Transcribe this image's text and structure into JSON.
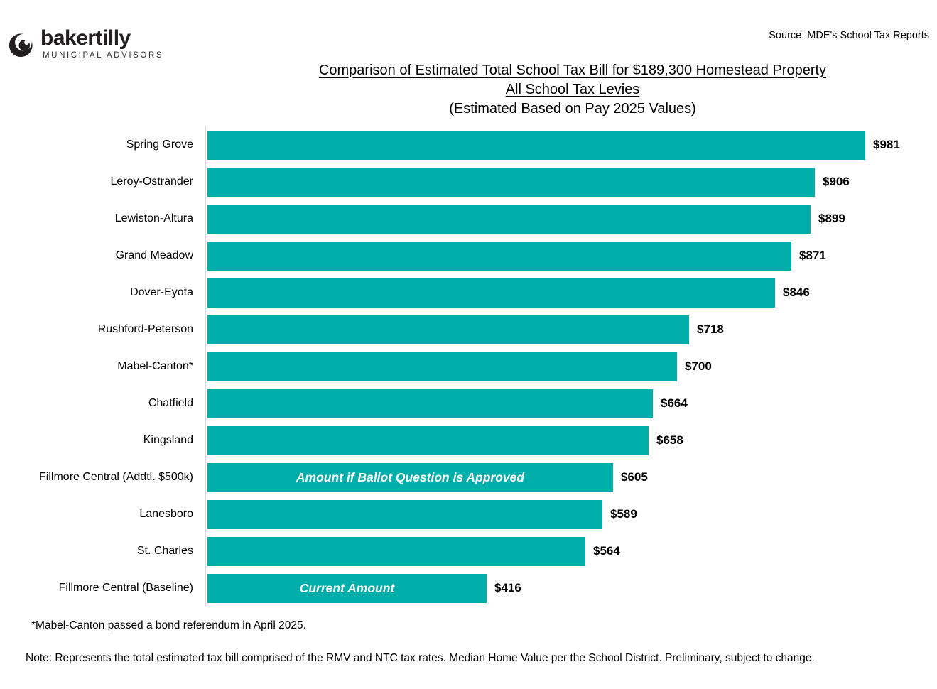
{
  "header": {
    "logo_brand": "bakertilly",
    "logo_subbrand": "MUNICIPAL ADVISORS",
    "source": "Source: MDE's School Tax Reports"
  },
  "chart_data": {
    "type": "bar",
    "orientation": "horizontal",
    "title_line1": "Comparison of Estimated Total School Tax Bill for $189,300 Homestead Property",
    "title_line2": "All School Tax Levies",
    "title_line3": "(Estimated Based on Pay 2025 Values)",
    "bar_color": "#00afa9",
    "value_prefix": "$",
    "xlim": [
      0,
      1040
    ],
    "grid": false,
    "legend": "none",
    "categories": [
      "Spring Grove",
      "Leroy-Ostrander",
      "Lewiston-Altura",
      "Grand Meadow",
      "Dover-Eyota",
      "Rushford-Peterson",
      "Mabel-Canton*",
      "Chatfield",
      "Kingsland",
      "Fillmore Central (Addtl. $500k)",
      "Lanesboro",
      "St. Charles",
      "Fillmore Central (Baseline)"
    ],
    "values": [
      981,
      906,
      899,
      871,
      846,
      718,
      700,
      664,
      658,
      605,
      589,
      564,
      416
    ],
    "annotations": [
      {
        "row_index": 9,
        "text": "Amount if Ballot Question is Approved"
      },
      {
        "row_index": 12,
        "text": "Current Amount"
      }
    ]
  },
  "footnotes": {
    "asterisk": "*Mabel-Canton passed a bond referendum in April 2025.",
    "note": "Note: Represents the total estimated tax bill comprised of the RMV and NTC tax rates. Median Home Value per the School District. Preliminary, subject to change."
  }
}
